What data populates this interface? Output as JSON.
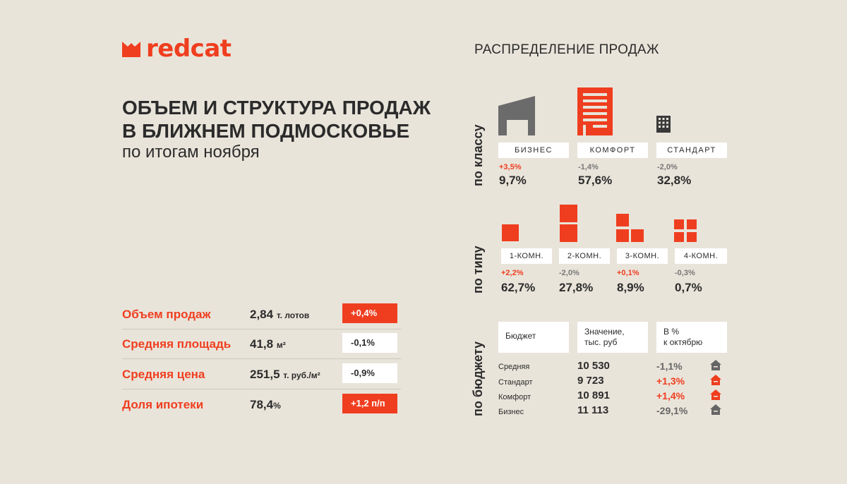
{
  "brand": {
    "name": "redcat",
    "color": "#ef3e1f"
  },
  "header": {
    "title_line1": "ОБЪЕМ И СТРУКТУРА ПРОДАЖ",
    "title_line2": "В БЛИЖНЕМ ПОДМОСКОВЬЕ",
    "subtitle": "по итогам ноября"
  },
  "metrics": [
    {
      "label": "Объем продаж",
      "value": "2,84",
      "unit": "т. лотов",
      "change": "+0,4%",
      "trend": "up"
    },
    {
      "label": "Средняя площадь",
      "value": "41,8",
      "unit": "м²",
      "change": "-0,1%",
      "trend": "down"
    },
    {
      "label": "Средняя цена",
      "value": "251,5",
      "unit": "т. руб./м²",
      "change": "-0,9%",
      "trend": "down"
    },
    {
      "label": "Доля ипотеки",
      "value": "78,4",
      "unit": "%",
      "change": "+1,2 п/п",
      "trend": "up"
    }
  ],
  "distribution": {
    "title": "РАСПРЕДЕЛЕНИЕ ПРОДАЖ",
    "by_class": {
      "label": "по классу",
      "items": [
        {
          "name": "БИЗНЕС",
          "change": "+3,5%",
          "share": "9,7%",
          "trend": "up",
          "icon": "business-building-icon"
        },
        {
          "name": "КОМФОРТ",
          "change": "-1,4%",
          "share": "57,6%",
          "trend": "down",
          "icon": "comfort-building-icon"
        },
        {
          "name": "СТАНДАРТ",
          "change": "-2,0%",
          "share": "32,8%",
          "trend": "down",
          "icon": "standard-building-icon"
        }
      ]
    },
    "by_type": {
      "label": "по типу",
      "items": [
        {
          "name": "1-КОМН.",
          "change": "+2,2%",
          "share": "62,7%",
          "trend": "up",
          "icon": "one-room-icon"
        },
        {
          "name": "2-КОМН.",
          "change": "-2,0%",
          "share": "27,8%",
          "trend": "down",
          "icon": "two-room-icon"
        },
        {
          "name": "3-КОМН.",
          "change": "+0,1%",
          "share": "8,9%",
          "trend": "up",
          "icon": "three-room-icon"
        },
        {
          "name": "4-КОМН.",
          "change": "-0,3%",
          "share": "0,7%",
          "trend": "down",
          "icon": "four-room-icon"
        }
      ]
    },
    "by_budget": {
      "label": "по бюджету",
      "headers": {
        "budget": "Бюджет",
        "value_line1": "Значение,",
        "value_line2": "тыс. руб",
        "change_line1": "В %",
        "change_line2": "к октябрю"
      },
      "rows": [
        {
          "name": "Средняя",
          "value": "10 530",
          "change": "-1,1%",
          "trend": "down"
        },
        {
          "name": "Стандарт",
          "value": "9 723",
          "change": "+1,3%",
          "trend": "up"
        },
        {
          "name": "Комфорт",
          "value": "10 891",
          "change": "+1,4%",
          "trend": "up"
        },
        {
          "name": "Бизнес",
          "value": "11 113",
          "change": "-29,1%",
          "trend": "down"
        }
      ]
    }
  }
}
